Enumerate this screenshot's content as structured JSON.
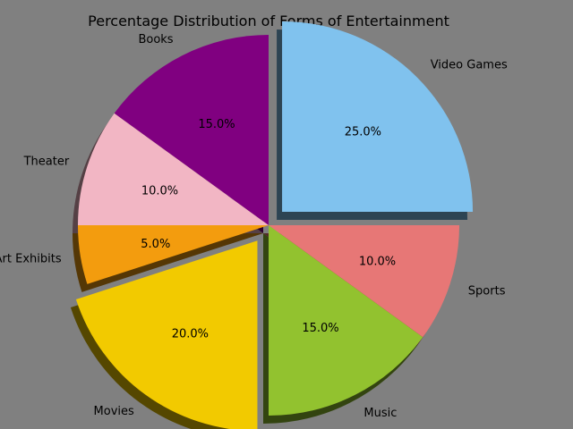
{
  "chart_data": {
    "type": "pie",
    "title": "Percentage Distribution of Forms of Entertainment",
    "start_angle_deg": 90,
    "direction": "counterclockwise",
    "shadow": true,
    "slices": [
      {
        "label": "Books",
        "value": 15,
        "pct_label": "15.0%",
        "color": "#800080",
        "explode": 0
      },
      {
        "label": "Theater",
        "value": 10,
        "pct_label": "10.0%",
        "color": "#F2B6C4",
        "explode": 0
      },
      {
        "label": "Art Exhibits",
        "value": 5,
        "pct_label": "5.0%",
        "color": "#F39C0E",
        "explode": 0
      },
      {
        "label": "Movies",
        "value": 20,
        "pct_label": "20.0%",
        "color": "#F2CA00",
        "explode": 0.1
      },
      {
        "label": "Music",
        "value": 15,
        "pct_label": "15.0%",
        "color": "#92C22F",
        "explode": 0
      },
      {
        "label": "Sports",
        "value": 10,
        "pct_label": "10.0%",
        "color": "#E77776",
        "explode": 0
      },
      {
        "label": "Video Games",
        "value": 25,
        "pct_label": "25.0%",
        "color": "#80C2EE",
        "explode": 0.1
      }
    ]
  }
}
